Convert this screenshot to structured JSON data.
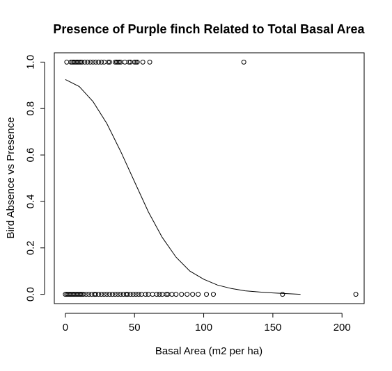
{
  "chart_data": {
    "type": "scatter",
    "title": "Presence of Purple finch Related to Total Basal Area",
    "xlabel": "Basal Area (m2 per ha)",
    "ylabel": "Bird Absence vs Presence",
    "xlim": [
      -8,
      216
    ],
    "ylim": [
      -0.04,
      1.04
    ],
    "xticks": [
      0,
      50,
      100,
      150,
      200
    ],
    "xtick_labels": [
      "0",
      "50",
      "100",
      "150",
      "200"
    ],
    "yticks": [
      0.0,
      0.2,
      0.4,
      0.6,
      0.8,
      1.0
    ],
    "ytick_labels": [
      "0.0",
      "0.2",
      "0.4",
      "0.6",
      "0.8",
      "1.0"
    ],
    "grid": false,
    "legend": "none",
    "series": [
      {
        "kind": "points",
        "x": [
          1,
          4,
          5,
          6,
          7,
          8,
          9,
          10,
          11,
          12,
          14,
          16,
          18,
          20,
          22,
          24,
          26,
          28,
          31,
          32,
          36,
          37,
          38,
          39,
          40,
          43,
          46,
          47,
          50,
          51,
          52,
          56,
          61,
          129,
          0,
          1,
          2,
          3,
          4,
          5,
          6,
          7,
          8,
          9,
          10,
          11,
          12,
          13,
          15,
          17,
          19,
          21,
          22,
          24,
          26,
          28,
          30,
          32,
          34,
          36,
          38,
          40,
          42,
          44,
          45,
          47,
          49,
          51,
          53,
          55,
          58,
          60,
          63,
          66,
          68,
          70,
          73,
          74,
          77,
          80,
          84,
          88,
          92,
          96,
          102,
          107,
          157,
          210
        ],
        "y": [
          1,
          1,
          1,
          1,
          1,
          1,
          1,
          1,
          1,
          1,
          1,
          1,
          1,
          1,
          1,
          1,
          1,
          1,
          1,
          1,
          1,
          1,
          1,
          1,
          1,
          1,
          1,
          1,
          1,
          1,
          1,
          1,
          1,
          1,
          0,
          0,
          0,
          0,
          0,
          0,
          0,
          0,
          0,
          0,
          0,
          0,
          0,
          0,
          0,
          0,
          0,
          0,
          0,
          0,
          0,
          0,
          0,
          0,
          0,
          0,
          0,
          0,
          0,
          0,
          0,
          0,
          0,
          0,
          0,
          0,
          0,
          0,
          0,
          0,
          0,
          0,
          0,
          0,
          0,
          0,
          0,
          0,
          0,
          0,
          0,
          0,
          0,
          0
        ]
      },
      {
        "kind": "line",
        "x": [
          0,
          10,
          20,
          30,
          40,
          50,
          60,
          70,
          80,
          90,
          100,
          110,
          120,
          130,
          140,
          150,
          160,
          170
        ],
        "y": [
          0.925,
          0.895,
          0.83,
          0.735,
          0.615,
          0.485,
          0.355,
          0.245,
          0.16,
          0.1,
          0.065,
          0.04,
          0.025,
          0.015,
          0.01,
          0.006,
          0.003,
          0.0
        ]
      }
    ]
  }
}
